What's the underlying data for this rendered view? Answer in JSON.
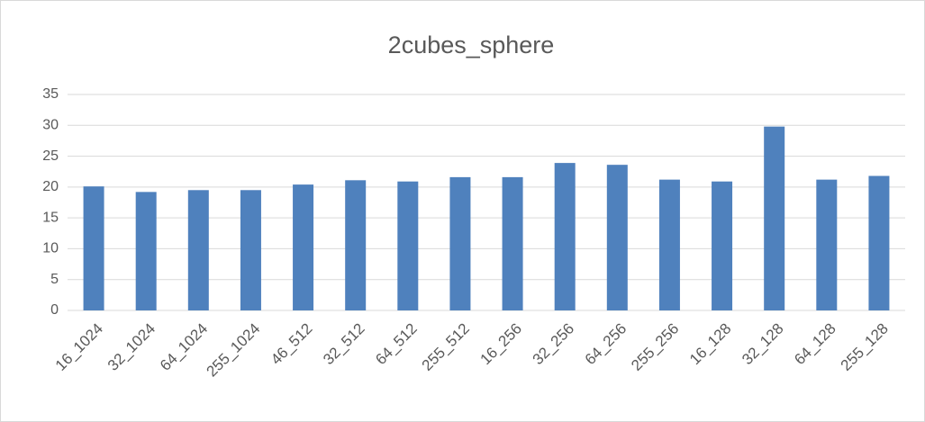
{
  "chart_data": {
    "type": "bar",
    "title": "2cubes_sphere",
    "categories": [
      "16_1024",
      "32_1024",
      "64_1024",
      "255_1024",
      "46_512",
      "32_512",
      "64_512",
      "255_512",
      "16_256",
      "32_256",
      "64_256",
      "255_256",
      "16_128",
      "32_128",
      "64_128",
      "255_128"
    ],
    "values": [
      20.1,
      19.2,
      19.5,
      19.5,
      20.4,
      21.1,
      20.9,
      21.6,
      21.6,
      23.9,
      23.6,
      21.2,
      20.9,
      29.8,
      21.2,
      21.8
    ],
    "color": "#4f81bd",
    "ylim": [
      0,
      35
    ],
    "yticks": [
      0,
      5,
      10,
      15,
      20,
      25,
      30,
      35
    ],
    "grid": true
  }
}
